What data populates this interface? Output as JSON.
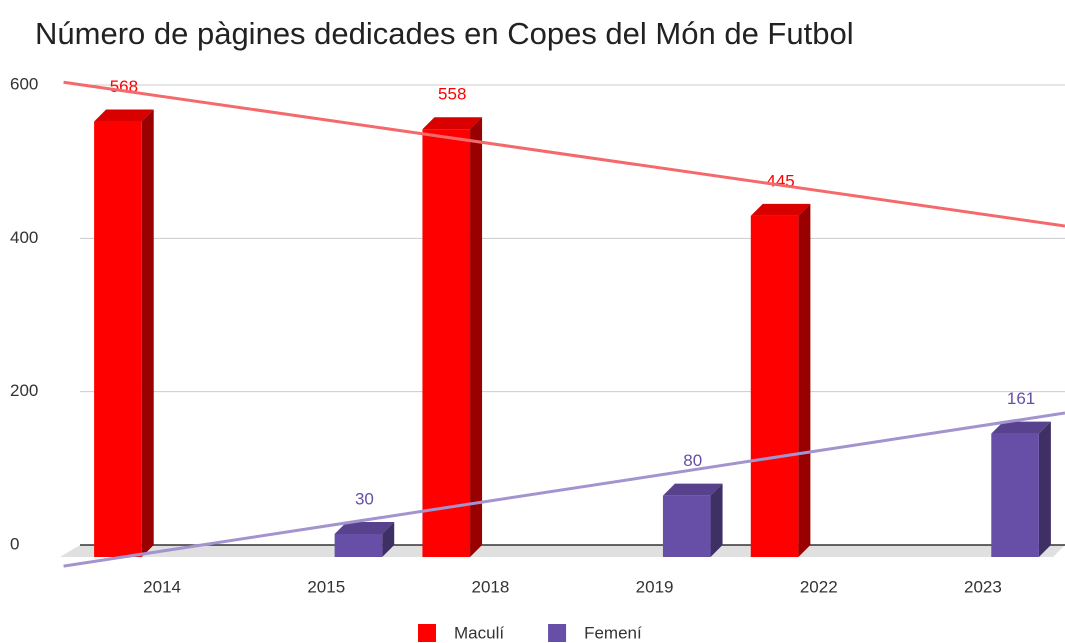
{
  "chart_data": {
    "type": "bar3d",
    "title": "Número de pàgines dedicades en Copes del Món de Futbol",
    "categories": [
      "2014",
      "2015",
      "2018",
      "2019",
      "2022",
      "2023"
    ],
    "series": [
      {
        "name": "Maculí",
        "color": "#ff0000",
        "trendline_color": "#f46a6c",
        "values": [
          568,
          null,
          558,
          null,
          445,
          null
        ]
      },
      {
        "name": "Femení",
        "color": "#674ea7",
        "trendline_color": "#a394cf",
        "values": [
          null,
          30,
          null,
          80,
          null,
          161
        ]
      }
    ],
    "ylim": [
      0,
      600
    ],
    "yticks": [
      0,
      200,
      400,
      600
    ],
    "grid": true,
    "trendlines": true,
    "legend": "bottom"
  }
}
